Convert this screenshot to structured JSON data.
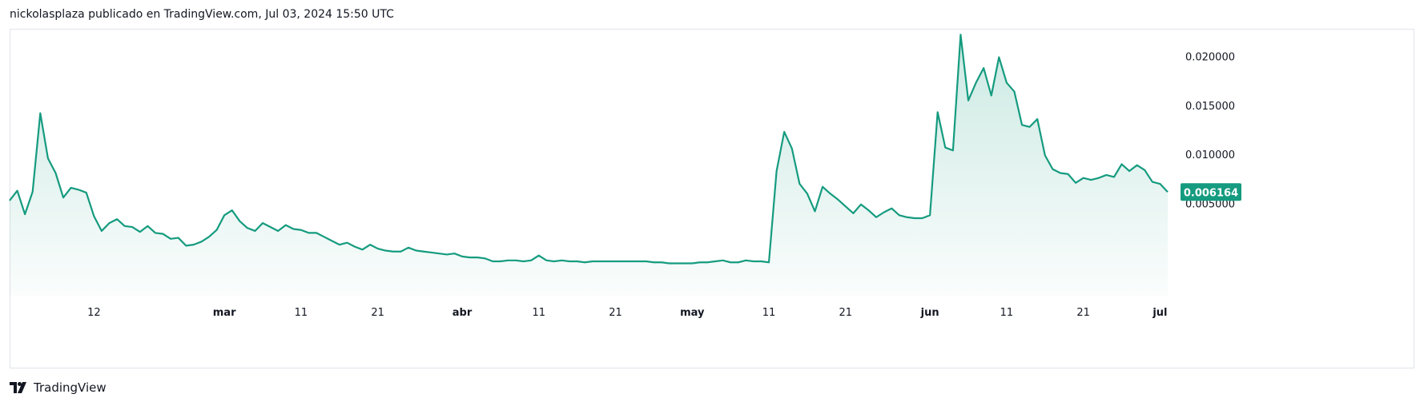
{
  "header": {
    "publish_line": "nickolasplaza publicado en TradingView.com, Jul 03, 2024 15:50 UTC"
  },
  "footer": {
    "brand": "TradingView"
  },
  "colors": {
    "line": "#159b7f",
    "fill_top": "#159b7f",
    "badge": "#159b7f"
  },
  "chart_data": {
    "type": "area",
    "grid": false,
    "x_ticks": [
      {
        "index": 11,
        "label": "12",
        "bold": false
      },
      {
        "index": 28,
        "label": "mar",
        "bold": true
      },
      {
        "index": 38,
        "label": "11",
        "bold": false
      },
      {
        "index": 48,
        "label": "21",
        "bold": false
      },
      {
        "index": 59,
        "label": "abr",
        "bold": true
      },
      {
        "index": 69,
        "label": "11",
        "bold": false
      },
      {
        "index": 79,
        "label": "21",
        "bold": false
      },
      {
        "index": 89,
        "label": "may",
        "bold": true
      },
      {
        "index": 99,
        "label": "11",
        "bold": false
      },
      {
        "index": 109,
        "label": "21",
        "bold": false
      },
      {
        "index": 120,
        "label": "jun",
        "bold": true
      },
      {
        "index": 130,
        "label": "11",
        "bold": false
      },
      {
        "index": 140,
        "label": "21",
        "bold": false
      },
      {
        "index": 150,
        "label": "jul",
        "bold": true
      }
    ],
    "y_ticks": [
      0.005,
      0.01,
      0.015,
      0.02
    ],
    "y_tick_labels": [
      "0.005000",
      "0.010000",
      "0.015000",
      "0.020000"
    ],
    "ylim": [
      -0.0044,
      0.0228
    ],
    "last_value_label": "0.006164",
    "last_value": 0.006164,
    "values": [
      0.0053,
      0.0063,
      0.0039,
      0.0062,
      0.0142,
      0.0096,
      0.0081,
      0.0056,
      0.0066,
      0.0064,
      0.0061,
      0.0037,
      0.0022,
      0.003,
      0.0034,
      0.0027,
      0.0026,
      0.0021,
      0.0027,
      0.002,
      0.0019,
      0.0014,
      0.0015,
      0.0007,
      0.0008,
      0.0011,
      0.0016,
      0.0023,
      0.0038,
      0.0043,
      0.0032,
      0.0025,
      0.0022,
      0.003,
      0.0026,
      0.0022,
      0.0028,
      0.0024,
      0.0023,
      0.002,
      0.002,
      0.0016,
      0.0012,
      0.0008,
      0.001,
      0.0006,
      0.0003,
      0.0008,
      0.0004,
      0.0002,
      0.0001,
      0.0001,
      0.0005,
      0.0002,
      0.0001,
      0.0,
      -0.0001,
      -0.0002,
      -0.0001,
      -0.0004,
      -0.0005,
      -0.0005,
      -0.0006,
      -0.0009,
      -0.0009,
      -0.0008,
      -0.0008,
      -0.0009,
      -0.0008,
      -0.0003,
      -0.0008,
      -0.0009,
      -0.0008,
      -0.0009,
      -0.0009,
      -0.001,
      -0.0009,
      -0.0009,
      -0.0009,
      -0.0009,
      -0.0009,
      -0.0009,
      -0.0009,
      -0.0009,
      -0.001,
      -0.001,
      -0.0011,
      -0.0011,
      -0.0011,
      -0.0011,
      -0.001,
      -0.001,
      -0.0009,
      -0.0008,
      -0.001,
      -0.001,
      -0.0008,
      -0.0009,
      -0.0009,
      -0.001,
      0.0083,
      0.0123,
      0.0106,
      0.007,
      0.006,
      0.0042,
      0.0067,
      0.006,
      0.0054,
      0.0047,
      0.004,
      0.0049,
      0.0043,
      0.0036,
      0.0041,
      0.0045,
      0.0038,
      0.0036,
      0.0035,
      0.0035,
      0.0038,
      0.0143,
      0.0107,
      0.0104,
      0.0222,
      0.0155,
      0.0173,
      0.0188,
      0.016,
      0.0199,
      0.0173,
      0.0164,
      0.013,
      0.0128,
      0.0136,
      0.0099,
      0.0085,
      0.0081,
      0.008,
      0.0071,
      0.0076,
      0.0074,
      0.0076,
      0.0079,
      0.0077,
      0.009,
      0.0083,
      0.0089,
      0.0084,
      0.0072,
      0.007,
      0.006164
    ]
  }
}
